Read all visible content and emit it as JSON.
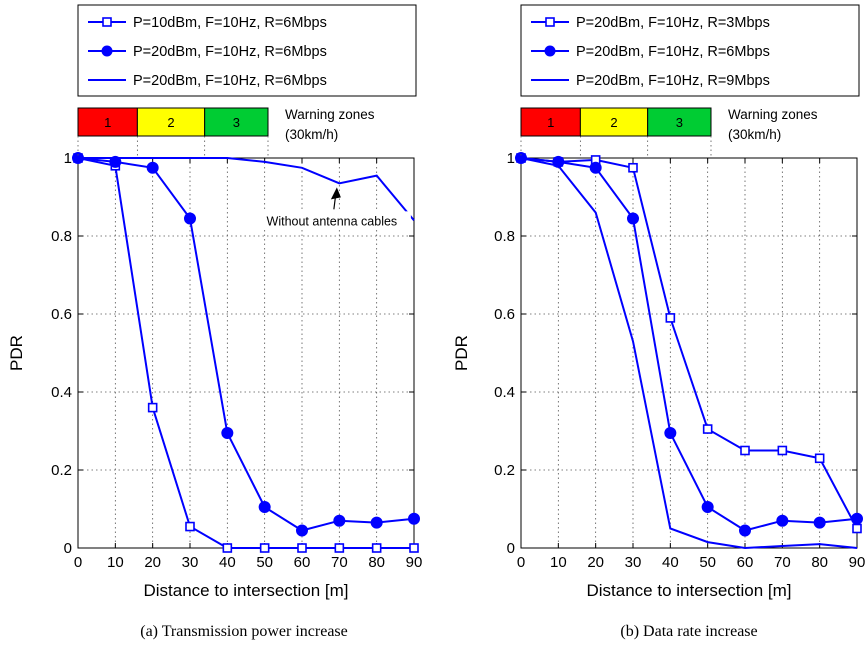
{
  "chart_data": [
    {
      "type": "line",
      "caption": "(a) Transmission power increase",
      "xlabel": "Distance to intersection [m]",
      "ylabel": "PDR",
      "xlim": [
        0,
        90
      ],
      "ylim": [
        0,
        1
      ],
      "xticks": [
        0,
        10,
        20,
        30,
        40,
        50,
        60,
        70,
        80,
        90
      ],
      "yticks": [
        0,
        0.2,
        0.4,
        0.6,
        0.8,
        1
      ],
      "ytick_labels": [
        "0",
        "0.2",
        "0.4",
        "0.6",
        "0.8",
        "1"
      ],
      "grid": true,
      "legend_position": "above plot, left",
      "series": [
        {
          "name": "P=10dBm, F=10Hz, R=6Mbps",
          "marker": "square-open",
          "x": [
            0,
            10,
            20,
            30,
            40,
            50,
            60,
            70,
            80,
            90
          ],
          "y": [
            1.0,
            0.98,
            0.36,
            0.055,
            0.0,
            0.0,
            0.0,
            0.0,
            0.0,
            0.0
          ]
        },
        {
          "name": "P=20dBm, F=10Hz, R=6Mbps",
          "marker": "circle-filled",
          "x": [
            0,
            10,
            20,
            30,
            40,
            50,
            60,
            70,
            80,
            90
          ],
          "y": [
            1.0,
            0.99,
            0.975,
            0.845,
            0.295,
            0.105,
            0.045,
            0.07,
            0.065,
            0.075
          ]
        },
        {
          "name": "P=20dBm, F=10Hz, R=6Mbps",
          "marker": "none",
          "x": [
            0,
            10,
            20,
            30,
            40,
            50,
            60,
            70,
            80,
            90
          ],
          "y": [
            1.0,
            1.0,
            1.0,
            1.0,
            1.0,
            0.99,
            0.975,
            0.935,
            0.955,
            0.84
          ]
        }
      ],
      "annotation": {
        "text": "Without antenna cables",
        "x": 68,
        "y": 0.935
      },
      "warning_zones": {
        "label_line1": "Warning zones",
        "label_line2": "(30km/h)",
        "zones": [
          {
            "label": "1",
            "color": "#ff0000",
            "start": 0,
            "end": 15
          },
          {
            "label": "2",
            "color": "#ffff00",
            "start": 15,
            "end": 32
          },
          {
            "label": "3",
            "color": "#00cc33",
            "start": 32,
            "end": 48
          }
        ]
      }
    },
    {
      "type": "line",
      "caption": "(b) Data rate increase",
      "xlabel": "Distance to intersection [m]",
      "ylabel": "PDR",
      "xlim": [
        0,
        90
      ],
      "ylim": [
        0,
        1
      ],
      "xticks": [
        0,
        10,
        20,
        30,
        40,
        50,
        60,
        70,
        80,
        90
      ],
      "yticks": [
        0,
        0.2,
        0.4,
        0.6,
        0.8,
        1
      ],
      "ytick_labels": [
        "0",
        "0.2",
        "0.4",
        "0.6",
        "0.8",
        "1"
      ],
      "grid": true,
      "legend_position": "above plot, left",
      "series": [
        {
          "name": "P=20dBm, F=10Hz, R=3Mbps",
          "marker": "square-open",
          "x": [
            0,
            10,
            20,
            30,
            40,
            50,
            60,
            70,
            80,
            90
          ],
          "y": [
            1.0,
            0.99,
            0.995,
            0.975,
            0.59,
            0.305,
            0.25,
            0.25,
            0.23,
            0.05
          ]
        },
        {
          "name": "P=20dBm, F=10Hz, R=6Mbps",
          "marker": "circle-filled",
          "x": [
            0,
            10,
            20,
            30,
            40,
            50,
            60,
            70,
            80,
            90
          ],
          "y": [
            1.0,
            0.99,
            0.975,
            0.845,
            0.295,
            0.105,
            0.045,
            0.07,
            0.065,
            0.075
          ]
        },
        {
          "name": "P=20dBm, F=10Hz, R=9Mbps",
          "marker": "none",
          "x": [
            0,
            10,
            20,
            30,
            40,
            50,
            60,
            70,
            80,
            90
          ],
          "y": [
            1.0,
            0.98,
            0.86,
            0.53,
            0.05,
            0.015,
            0.0,
            0.005,
            0.01,
            0.0
          ]
        }
      ],
      "warning_zones": {
        "label_line1": "Warning zones",
        "label_line2": "(30km/h)",
        "zones": [
          {
            "label": "1",
            "color": "#ff0000",
            "start": 0,
            "end": 15
          },
          {
            "label": "2",
            "color": "#ffff00",
            "start": 15,
            "end": 32
          },
          {
            "label": "3",
            "color": "#00cc33",
            "start": 32,
            "end": 48
          }
        ]
      }
    }
  ],
  "colors": {
    "series": "#0000ff",
    "grid": "#555555",
    "axis": "#000000"
  }
}
